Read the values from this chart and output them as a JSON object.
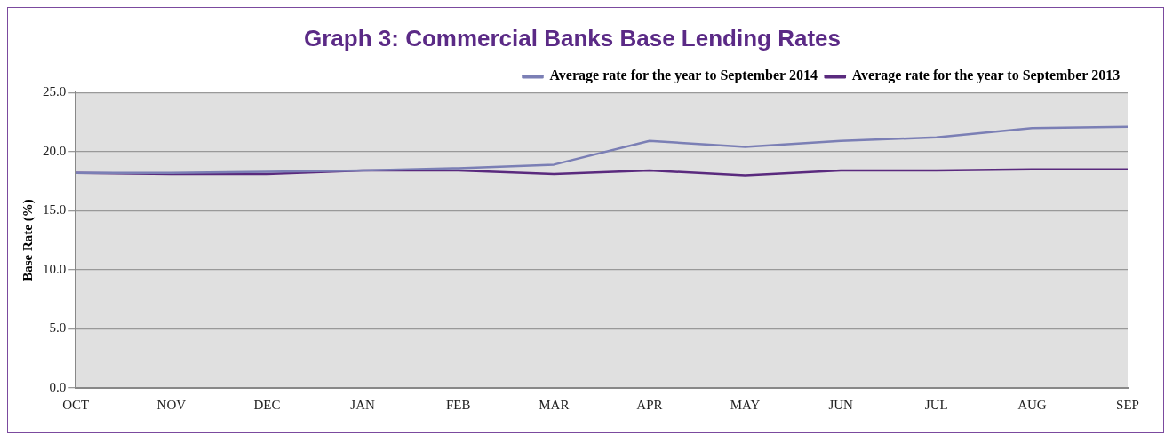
{
  "chart_data": {
    "type": "line",
    "title": "Graph 3: Commercial Banks Base Lending Rates",
    "ylabel": "Base Rate (%)",
    "categories": [
      "OCT",
      "NOV",
      "DEC",
      "JAN",
      "FEB",
      "MAR",
      "APR",
      "MAY",
      "JUN",
      "JUL",
      "AUG",
      "SEP"
    ],
    "series": [
      {
        "name": "Average rate for the year to September 2014",
        "color": "#7b7fb5",
        "values": [
          18.2,
          18.2,
          18.3,
          18.4,
          18.6,
          18.9,
          20.9,
          20.4,
          20.9,
          21.2,
          22.0,
          22.1
        ]
      },
      {
        "name": "Average rate for the year to September 2013",
        "color": "#5a2a7e",
        "values": [
          18.2,
          18.1,
          18.1,
          18.4,
          18.4,
          18.1,
          18.4,
          18.0,
          18.4,
          18.4,
          18.5,
          18.5
        ]
      }
    ],
    "ylim": [
      0,
      25
    ],
    "yticks": [
      {
        "value": 0,
        "label": "0.0"
      },
      {
        "value": 5,
        "label": "5.0"
      },
      {
        "value": 10,
        "label": "10.0"
      },
      {
        "value": 15,
        "label": "15.0"
      },
      {
        "value": 20,
        "label": "20.0"
      },
      {
        "value": 25,
        "label": "25.0"
      }
    ],
    "grid": "y",
    "legend": "top right",
    "marker": "none",
    "line_style": "solid"
  }
}
